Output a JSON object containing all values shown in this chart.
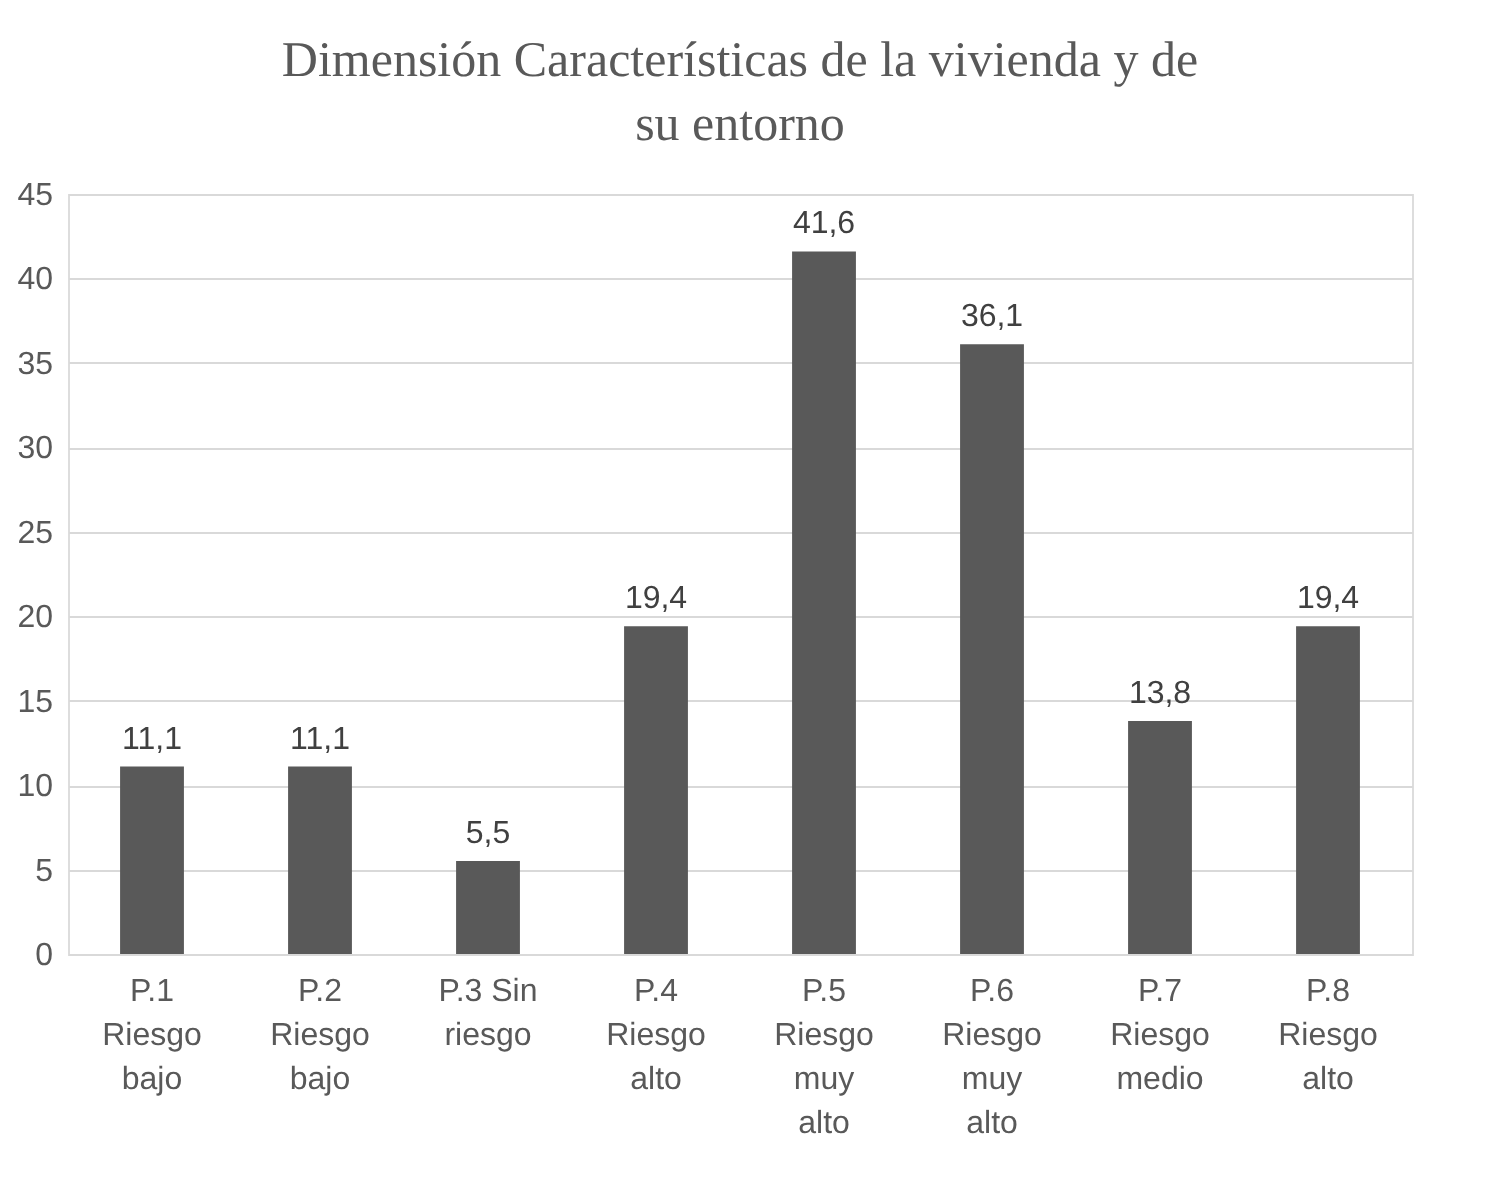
{
  "chart_data": {
    "type": "bar",
    "title": "Dimensión Características de la vivienda y de su entorno",
    "categories": [
      "P.1 Riesgo bajo",
      "P.2 Riesgo bajo",
      "P.3 Sin riesgo",
      "P.4 Riesgo alto",
      "P.5 Riesgo muy alto",
      "P.6 Riesgo muy alto",
      "P.7 Riesgo medio",
      "P.8 Riesgo alto"
    ],
    "values": [
      11.1,
      11.1,
      5.5,
      19.4,
      41.6,
      36.1,
      13.8,
      19.4
    ],
    "value_labels": [
      "11,1",
      "11,1",
      "5,5",
      "19,4",
      "41,6",
      "36,1",
      "13,8",
      "19,4"
    ],
    "color": "#595959",
    "ylim": [
      0,
      45
    ],
    "yticks": [
      0,
      5,
      10,
      15,
      20,
      25,
      30,
      35,
      40,
      45
    ],
    "grid": "y"
  }
}
